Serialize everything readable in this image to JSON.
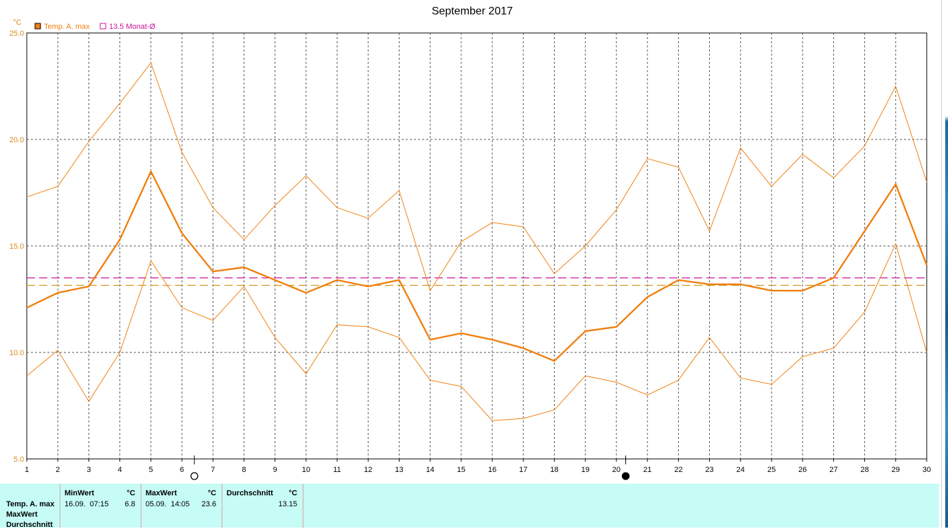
{
  "chart_data": {
    "type": "line",
    "title": "September 2017",
    "ylabel": "°C",
    "ylim": [
      5.0,
      25.0
    ],
    "yticks": [
      "5.0",
      "10.0",
      "15.0",
      "20.0",
      "25.0"
    ],
    "x": [
      1,
      2,
      3,
      4,
      5,
      6,
      7,
      8,
      9,
      10,
      11,
      12,
      13,
      14,
      15,
      16,
      17,
      18,
      19,
      20,
      21,
      22,
      23,
      24,
      25,
      26,
      27,
      28,
      29,
      30
    ],
    "series": [
      {
        "name": "Temp. A. max",
        "role": "average",
        "color": "#f08010",
        "values": [
          12.1,
          12.8,
          13.1,
          15.3,
          18.5,
          15.6,
          13.8,
          14.0,
          13.4,
          12.8,
          13.4,
          13.1,
          13.4,
          10.6,
          10.9,
          10.6,
          10.2,
          9.6,
          11.0,
          11.2,
          12.6,
          13.4,
          13.2,
          13.2,
          12.9,
          12.9,
          13.5,
          15.7,
          17.9,
          14.1
        ]
      },
      {
        "role": "max",
        "color": "#f08010",
        "values": [
          17.3,
          17.8,
          19.9,
          21.7,
          23.6,
          19.4,
          16.8,
          15.3,
          16.9,
          18.3,
          16.8,
          16.3,
          17.6,
          12.9,
          15.2,
          16.1,
          15.9,
          13.7,
          15.0,
          16.7,
          19.1,
          18.7,
          15.7,
          19.6,
          17.8,
          19.3,
          18.2,
          19.7,
          22.5,
          18.0
        ]
      },
      {
        "role": "min",
        "color": "#f08010",
        "values": [
          8.9,
          10.1,
          7.7,
          10.0,
          14.3,
          12.1,
          11.5,
          13.1,
          10.7,
          9.0,
          11.3,
          11.2,
          10.7,
          8.7,
          8.4,
          6.8,
          6.9,
          7.3,
          8.9,
          8.6,
          8.0,
          8.7,
          10.7,
          8.8,
          8.5,
          9.8,
          10.2,
          11.9,
          15.1,
          10.0
        ]
      }
    ],
    "reference_lines": [
      {
        "label": "13.5 Monat-Ø",
        "value": 13.5,
        "color": "#cc1199"
      },
      {
        "value": 13.15,
        "color": "#d09a20"
      }
    ],
    "legend": {
      "placement": "top-left",
      "items": [
        {
          "label": "Temp. A. max",
          "color": "#f08010"
        },
        {
          "label": "13.5 Monat-Ø",
          "color": "#cc1199"
        }
      ]
    },
    "moon_phases": [
      {
        "day": 6.4,
        "phase": "full"
      },
      {
        "day": 20.3,
        "phase": "new"
      }
    ],
    "grid": true
  },
  "stats": {
    "row_labels": [
      "Temp. A. max",
      "MaxWert",
      "Durchschnitt"
    ],
    "min": {
      "header": "MinWert",
      "unit": "°C",
      "datetime": "16.09.  07:15",
      "value": "6.8"
    },
    "max": {
      "header": "MaxWert",
      "unit": "°C",
      "datetime": "05.09.  14:05",
      "value": "23.6"
    },
    "avg": {
      "header": "Durchschnitt",
      "unit": "°C",
      "value": "13.15"
    }
  }
}
